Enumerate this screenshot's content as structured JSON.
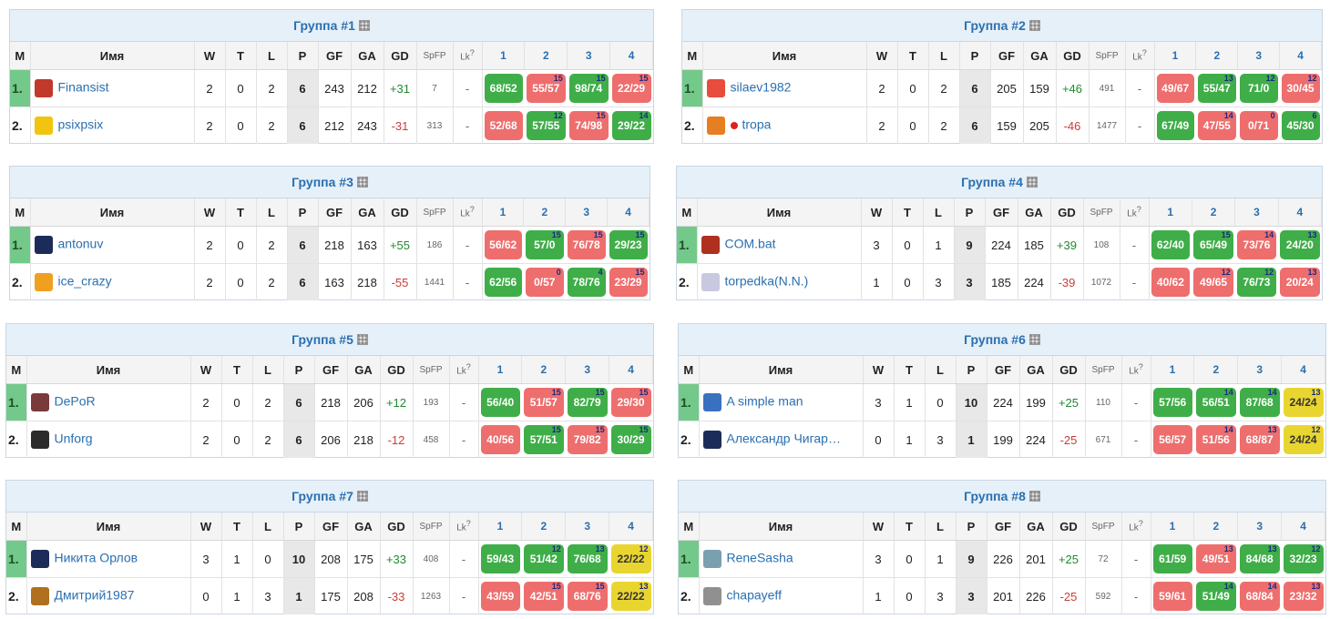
{
  "headers": {
    "m": "М",
    "name": "Имя",
    "w": "W",
    "t": "T",
    "l": "L",
    "p": "P",
    "gf": "GF",
    "ga": "GA",
    "gd": "GD",
    "spfp": "SpFP",
    "lk": "Lk",
    "lk_sup": "?",
    "c1": "1",
    "c2": "2",
    "c3": "3",
    "c4": "4"
  },
  "groups": [
    {
      "title": "Группа #1",
      "rows": [
        {
          "m": "1.",
          "name": "Finansist",
          "w": "2",
          "t": "0",
          "l": "2",
          "p": "6",
          "gf": "243",
          "ga": "212",
          "gd": "+31",
          "spfp": "7",
          "lk": "-",
          "cells": [
            {
              "s": "68/52",
              "sup": "",
              "r": "w"
            },
            {
              "s": "55/57",
              "sup": "15",
              "r": "l"
            },
            {
              "s": "98/74",
              "sup": "15",
              "r": "w"
            },
            {
              "s": "22/29",
              "sup": "15",
              "r": "l"
            }
          ]
        },
        {
          "m": "2.",
          "name": "psixpsix",
          "w": "2",
          "t": "0",
          "l": "2",
          "p": "6",
          "gf": "212",
          "ga": "243",
          "gd": "-31",
          "spfp": "313",
          "lk": "-",
          "cells": [
            {
              "s": "52/68",
              "sup": "",
              "r": "l"
            },
            {
              "s": "57/55",
              "sup": "12",
              "r": "w"
            },
            {
              "s": "74/98",
              "sup": "15",
              "r": "l"
            },
            {
              "s": "29/22",
              "sup": "14",
              "r": "w"
            }
          ]
        }
      ]
    },
    {
      "title": "Группа #2",
      "rows": [
        {
          "m": "1.",
          "name": "silaev1982",
          "w": "2",
          "t": "0",
          "l": "2",
          "p": "6",
          "gf": "205",
          "ga": "159",
          "gd": "+46",
          "spfp": "491",
          "lk": "-",
          "cells": [
            {
              "s": "49/67",
              "sup": "",
              "r": "l"
            },
            {
              "s": "55/47",
              "sup": "13",
              "r": "w"
            },
            {
              "s": "71/0",
              "sup": "12",
              "r": "w"
            },
            {
              "s": "30/45",
              "sup": "12",
              "r": "l"
            }
          ]
        },
        {
          "m": "2.",
          "name": "tropa",
          "w": "2",
          "t": "0",
          "l": "2",
          "p": "6",
          "gf": "159",
          "ga": "205",
          "gd": "-46",
          "spfp": "1477",
          "lk": "-",
          "cells": [
            {
              "s": "67/49",
              "sup": "",
              "r": "w"
            },
            {
              "s": "47/55",
              "sup": "14",
              "r": "l"
            },
            {
              "s": "0/71",
              "sup": "0",
              "r": "l"
            },
            {
              "s": "45/30",
              "sup": "6",
              "r": "w"
            }
          ]
        }
      ]
    },
    {
      "title": "Группа #3",
      "rows": [
        {
          "m": "1.",
          "name": "antonuv",
          "w": "2",
          "t": "0",
          "l": "2",
          "p": "6",
          "gf": "218",
          "ga": "163",
          "gd": "+55",
          "spfp": "186",
          "lk": "-",
          "cells": [
            {
              "s": "56/62",
              "sup": "",
              "r": "l"
            },
            {
              "s": "57/0",
              "sup": "15",
              "r": "w"
            },
            {
              "s": "76/78",
              "sup": "15",
              "r": "l"
            },
            {
              "s": "29/23",
              "sup": "15",
              "r": "w"
            }
          ]
        },
        {
          "m": "2.",
          "name": "ice_crazy",
          "w": "2",
          "t": "0",
          "l": "2",
          "p": "6",
          "gf": "163",
          "ga": "218",
          "gd": "-55",
          "spfp": "1441",
          "lk": "-",
          "cells": [
            {
              "s": "62/56",
              "sup": "",
              "r": "w"
            },
            {
              "s": "0/57",
              "sup": "0",
              "r": "l"
            },
            {
              "s": "78/76",
              "sup": "4",
              "r": "w"
            },
            {
              "s": "23/29",
              "sup": "15",
              "r": "l"
            }
          ]
        }
      ]
    },
    {
      "title": "Группа #4",
      "rows": [
        {
          "m": "1.",
          "name": "COM.bat",
          "w": "3",
          "t": "0",
          "l": "1",
          "p": "9",
          "gf": "224",
          "ga": "185",
          "gd": "+39",
          "spfp": "108",
          "lk": "-",
          "cells": [
            {
              "s": "62/40",
              "sup": "",
              "r": "w"
            },
            {
              "s": "65/49",
              "sup": "15",
              "r": "w"
            },
            {
              "s": "73/76",
              "sup": "14",
              "r": "l"
            },
            {
              "s": "24/20",
              "sup": "13",
              "r": "w"
            }
          ]
        },
        {
          "m": "2.",
          "name": "torpedka(N.N.)",
          "w": "1",
          "t": "0",
          "l": "3",
          "p": "3",
          "gf": "185",
          "ga": "224",
          "gd": "-39",
          "spfp": "1072",
          "lk": "-",
          "cells": [
            {
              "s": "40/62",
              "sup": "",
              "r": "l"
            },
            {
              "s": "49/65",
              "sup": "12",
              "r": "l"
            },
            {
              "s": "76/73",
              "sup": "12",
              "r": "w"
            },
            {
              "s": "20/24",
              "sup": "13",
              "r": "l"
            }
          ]
        }
      ]
    },
    {
      "title": "Группа #5",
      "rows": [
        {
          "m": "1.",
          "name": "DePoR",
          "w": "2",
          "t": "0",
          "l": "2",
          "p": "6",
          "gf": "218",
          "ga": "206",
          "gd": "+12",
          "spfp": "193",
          "lk": "-",
          "cells": [
            {
              "s": "56/40",
              "sup": "",
              "r": "w"
            },
            {
              "s": "51/57",
              "sup": "15",
              "r": "l"
            },
            {
              "s": "82/79",
              "sup": "15",
              "r": "w"
            },
            {
              "s": "29/30",
              "sup": "15",
              "r": "l"
            }
          ]
        },
        {
          "m": "2.",
          "name": "Unforg",
          "w": "2",
          "t": "0",
          "l": "2",
          "p": "6",
          "gf": "206",
          "ga": "218",
          "gd": "-12",
          "spfp": "458",
          "lk": "-",
          "cells": [
            {
              "s": "40/56",
              "sup": "",
              "r": "l"
            },
            {
              "s": "57/51",
              "sup": "15",
              "r": "w"
            },
            {
              "s": "79/82",
              "sup": "15",
              "r": "l"
            },
            {
              "s": "30/29",
              "sup": "15",
              "r": "w"
            }
          ]
        }
      ]
    },
    {
      "title": "Группа #6",
      "rows": [
        {
          "m": "1.",
          "name": "A simple man",
          "w": "3",
          "t": "1",
          "l": "0",
          "p": "10",
          "gf": "224",
          "ga": "199",
          "gd": "+25",
          "spfp": "110",
          "lk": "-",
          "cells": [
            {
              "s": "57/56",
              "sup": "",
              "r": "w"
            },
            {
              "s": "56/51",
              "sup": "14",
              "r": "w"
            },
            {
              "s": "87/68",
              "sup": "14",
              "r": "w"
            },
            {
              "s": "24/24",
              "sup": "13",
              "r": "d"
            }
          ]
        },
        {
          "m": "2.",
          "name": "Александр Чигар…",
          "w": "0",
          "t": "1",
          "l": "3",
          "p": "1",
          "gf": "199",
          "ga": "224",
          "gd": "-25",
          "spfp": "671",
          "lk": "-",
          "cells": [
            {
              "s": "56/57",
              "sup": "",
              "r": "l"
            },
            {
              "s": "51/56",
              "sup": "14",
              "r": "l"
            },
            {
              "s": "68/87",
              "sup": "13",
              "r": "l"
            },
            {
              "s": "24/24",
              "sup": "12",
              "r": "d"
            }
          ]
        }
      ]
    },
    {
      "title": "Группа #7",
      "rows": [
        {
          "m": "1.",
          "name": "Никита Орлов",
          "w": "3",
          "t": "1",
          "l": "0",
          "p": "10",
          "gf": "208",
          "ga": "175",
          "gd": "+33",
          "spfp": "408",
          "lk": "-",
          "cells": [
            {
              "s": "59/43",
              "sup": "",
              "r": "w"
            },
            {
              "s": "51/42",
              "sup": "12",
              "r": "w"
            },
            {
              "s": "76/68",
              "sup": "13",
              "r": "w"
            },
            {
              "s": "22/22",
              "sup": "12",
              "r": "d"
            }
          ]
        },
        {
          "m": "2.",
          "name": "Дмитрий1987",
          "w": "0",
          "t": "1",
          "l": "3",
          "p": "1",
          "gf": "175",
          "ga": "208",
          "gd": "-33",
          "spfp": "1263",
          "lk": "-",
          "cells": [
            {
              "s": "43/59",
              "sup": "",
              "r": "l"
            },
            {
              "s": "42/51",
              "sup": "15",
              "r": "l"
            },
            {
              "s": "68/76",
              "sup": "15",
              "r": "l"
            },
            {
              "s": "22/22",
              "sup": "13",
              "r": "d"
            }
          ]
        }
      ]
    },
    {
      "title": "Группа #8",
      "rows": [
        {
          "m": "1.",
          "name": "ReneSasha",
          "w": "3",
          "t": "0",
          "l": "1",
          "p": "9",
          "gf": "226",
          "ga": "201",
          "gd": "+25",
          "spfp": "72",
          "lk": "-",
          "cells": [
            {
              "s": "61/59",
              "sup": "",
              "r": "w"
            },
            {
              "s": "49/51",
              "sup": "13",
              "r": "l"
            },
            {
              "s": "84/68",
              "sup": "13",
              "r": "w"
            },
            {
              "s": "32/23",
              "sup": "12",
              "r": "w"
            }
          ]
        },
        {
          "m": "2.",
          "name": "chapayeff",
          "w": "1",
          "t": "0",
          "l": "3",
          "p": "3",
          "gf": "201",
          "ga": "226",
          "gd": "-25",
          "spfp": "592",
          "lk": "-",
          "cells": [
            {
              "s": "59/61",
              "sup": "",
              "r": "l"
            },
            {
              "s": "51/49",
              "sup": "14",
              "r": "w"
            },
            {
              "s": "68/84",
              "sup": "14",
              "r": "l"
            },
            {
              "s": "23/32",
              "sup": "13",
              "r": "l"
            }
          ]
        }
      ]
    }
  ],
  "avatar_colors": [
    "#c0392b",
    "#f1c40f",
    "#e74c3c",
    "#e67e22",
    "#1c2c5a",
    "#f0a020",
    "#b03020",
    "#c8c8e0",
    "#7a3a3a",
    "#2b2b2b",
    "#3a70c0",
    "#1c2c5a",
    "#1c2c5a",
    "#b07020",
    "#7aa0b0",
    "#909090"
  ]
}
